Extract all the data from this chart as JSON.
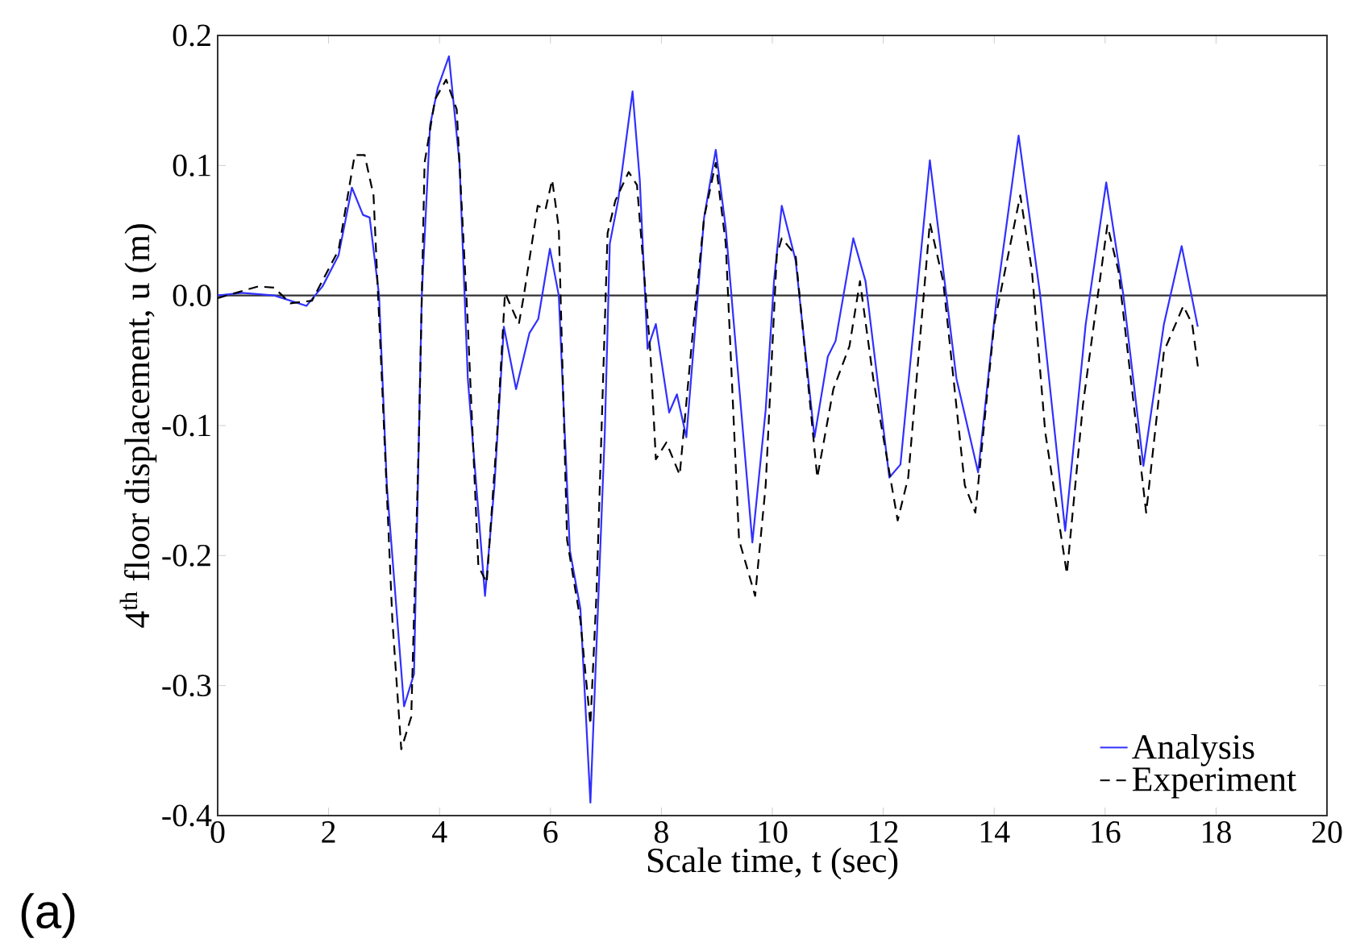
{
  "chart_data": {
    "type": "line",
    "xlabel": "Scale time, t (sec)",
    "ylabel": "4$^{th}$ floor displacement, u (m)",
    "xlim": [
      0,
      20
    ],
    "xticks": [
      0,
      2,
      4,
      6,
      8,
      10,
      12,
      14,
      16,
      18,
      20
    ],
    "ylim": [
      -0.4,
      0.2
    ],
    "yticks": [
      -0.4,
      -0.3,
      -0.2,
      -0.1,
      {
        "value": 0,
        "label": "0.0"
      },
      0.1,
      0.2
    ],
    "legend": "bottom right",
    "ref_lines": [
      {
        "axis": "y",
        "value": 0,
        "color": "#333333",
        "line_style": "solid"
      }
    ],
    "annotations": [
      "(a)"
    ],
    "series": [
      {
        "name": "Analysis",
        "color": "#3030ff",
        "line_style": "solid",
        "x": [
          0,
          0.44,
          1.02,
          1.6,
          1.89,
          2.18,
          2.42,
          2.62,
          2.74,
          2.91,
          3.05,
          3.36,
          3.54,
          3.68,
          3.83,
          3.97,
          4.17,
          4.36,
          4.51,
          4.82,
          4.99,
          5.16,
          5.38,
          5.62,
          5.78,
          5.99,
          6.15,
          6.35,
          6.54,
          6.72,
          6.98,
          7.07,
          7.22,
          7.48,
          7.61,
          7.75,
          7.9,
          8.14,
          8.28,
          8.45,
          8.77,
          8.98,
          9.16,
          9.64,
          9.88,
          10.03,
          10.17,
          10.42,
          10.76,
          11.0,
          11.14,
          11.46,
          11.68,
          12.11,
          12.31,
          12.84,
          13.32,
          13.71,
          14.05,
          14.44,
          14.83,
          15.28,
          15.65,
          16.02,
          16.33,
          16.69,
          17.06,
          17.38,
          17.67
        ],
        "values": [
          0,
          0.002,
          0,
          -0.008,
          0.007,
          0.031,
          0.083,
          0.062,
          0.06,
          0,
          -0.146,
          -0.316,
          -0.291,
          0,
          0.131,
          0.16,
          0.184,
          0.102,
          -0.064,
          -0.231,
          -0.146,
          -0.024,
          -0.072,
          -0.029,
          -0.018,
          0.036,
          0,
          -0.196,
          -0.241,
          -0.39,
          -0.105,
          0.04,
          0.073,
          0.157,
          0.089,
          -0.041,
          -0.022,
          -0.09,
          -0.076,
          -0.109,
          0.06,
          0.112,
          0.052,
          -0.19,
          -0.088,
          0.011,
          0.069,
          0.027,
          -0.109,
          -0.047,
          -0.035,
          0.044,
          0.011,
          -0.14,
          -0.13,
          0.104,
          -0.064,
          -0.136,
          0,
          0.123,
          0,
          -0.181,
          -0.022,
          0.087,
          0,
          -0.131,
          -0.022,
          0.038,
          -0.024
        ]
      },
      {
        "name": "Experiment",
        "color": "#000000",
        "line_style": "dashed",
        "x": [
          0,
          0.73,
          1.02,
          1.31,
          1.7,
          2.18,
          2.47,
          2.65,
          2.81,
          2.96,
          3.15,
          3.31,
          3.49,
          3.63,
          3.73,
          3.92,
          4.12,
          4.31,
          4.51,
          4.7,
          4.85,
          5.04,
          5.18,
          5.43,
          5.52,
          5.77,
          5.91,
          6.03,
          6.15,
          6.3,
          6.54,
          6.72,
          6.83,
          7.03,
          7.17,
          7.41,
          7.56,
          7.8,
          7.9,
          8.09,
          8.33,
          8.58,
          8.77,
          8.98,
          9.16,
          9.4,
          9.69,
          9.88,
          10.08,
          10.17,
          10.42,
          10.81,
          11.1,
          11.39,
          11.58,
          11.82,
          12.26,
          12.45,
          12.84,
          13.08,
          13.47,
          13.66,
          14.0,
          14.47,
          14.68,
          14.92,
          15.31,
          15.6,
          16.04,
          16.24,
          16.74,
          17.06,
          17.41,
          17.57,
          17.68
        ],
        "values": [
          -0.002,
          0.007,
          0.006,
          -0.006,
          -0.004,
          0.035,
          0.108,
          0.108,
          0.077,
          -0.064,
          -0.25,
          -0.349,
          -0.324,
          -0.105,
          0.102,
          0.151,
          0.166,
          0.143,
          -0.022,
          -0.208,
          -0.221,
          -0.105,
          0.002,
          -0.022,
          0,
          0.069,
          0.066,
          0.089,
          0.052,
          -0.188,
          -0.25,
          -0.33,
          -0.229,
          0.048,
          0.073,
          0.095,
          0.085,
          -0.043,
          -0.126,
          -0.113,
          -0.138,
          -0.022,
          0.06,
          0.102,
          0.04,
          -0.188,
          -0.231,
          -0.146,
          0.031,
          0.044,
          0.031,
          -0.14,
          -0.072,
          -0.039,
          0.011,
          -0.064,
          -0.173,
          -0.14,
          0.056,
          0.011,
          -0.146,
          -0.167,
          -0.022,
          0.077,
          0.019,
          -0.105,
          -0.214,
          -0.084,
          0.054,
          0.019,
          -0.167,
          -0.043,
          -0.008,
          -0.022,
          -0.057
        ]
      }
    ]
  }
}
